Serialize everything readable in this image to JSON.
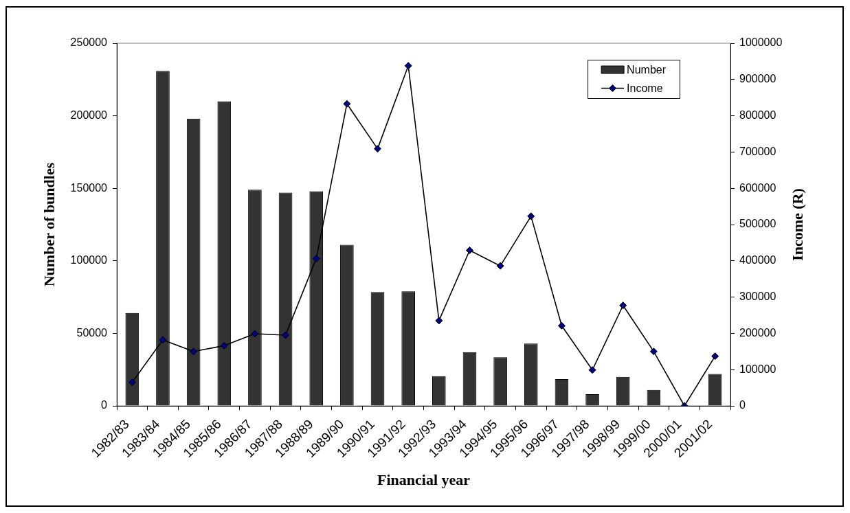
{
  "chart_data": {
    "type": "bar",
    "xlabel": "Financial year",
    "ylabel": "Number of bundles",
    "y2label": "Income (R)",
    "categories": [
      "1982/83",
      "1983/84",
      "1984/85",
      "1985/86",
      "1986/87",
      "1987/88",
      "1988/89",
      "1989/90",
      "1990/91",
      "1991/92",
      "1992/93",
      "1993/94",
      "1994/95",
      "1995/96",
      "1996/97",
      "1997/98",
      "1998/99",
      "1999/00",
      "2000/01",
      "2001/02"
    ],
    "series": [
      {
        "name": "Number",
        "color": "#333333",
        "values": [
          64000,
          231000,
          198000,
          210000,
          149000,
          147000,
          148000,
          111000,
          78500,
          79000,
          20500,
          37000,
          33500,
          43000,
          18500,
          8000,
          20000,
          11000,
          0,
          22000
        ]
      },
      {
        "name": "Income",
        "type": "line",
        "axis": "y2",
        "color": "#000000",
        "values": [
          65000,
          182000,
          150000,
          166000,
          199000,
          195000,
          406000,
          833000,
          709000,
          938000,
          235000,
          429000,
          386000,
          523000,
          221000,
          99000,
          277000,
          150000,
          0,
          137000
        ]
      }
    ],
    "ylim": [
      0,
      250000
    ],
    "yticks": [
      0,
      50000,
      100000,
      150000,
      200000,
      250000
    ],
    "y2lim": [
      0,
      1000000
    ],
    "y2ticks": [
      0,
      100000,
      200000,
      300000,
      400000,
      500000,
      600000,
      700000,
      800000,
      900000,
      1000000
    ],
    "grid": false,
    "legend": "top right",
    "marker": "diamond",
    "line_style": "solid"
  }
}
